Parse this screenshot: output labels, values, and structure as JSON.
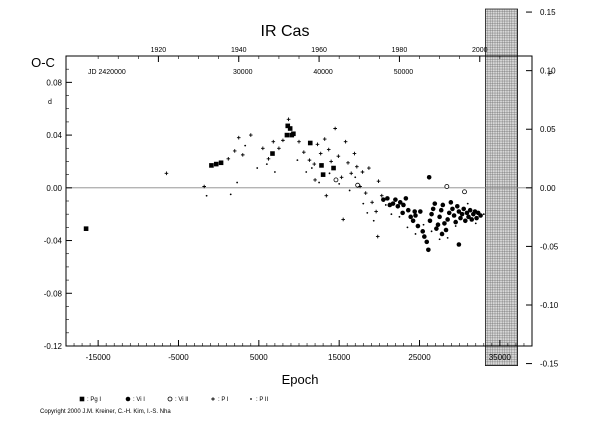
{
  "chart_data": {
    "type": "scatter",
    "title": "IR Cas",
    "ylabel": "O-C",
    "xlabel": "Epoch",
    "xlim": [
      -19000,
      39000
    ],
    "ylim": [
      -0.12,
      0.1
    ],
    "x_ticks": [
      -15000,
      -5000,
      5000,
      15000,
      25000,
      35000
    ],
    "x_tick_labels": [
      "-15000",
      "-5000",
      "5000",
      "15000",
      "25000",
      "35000"
    ],
    "y_ticks": [
      -0.12,
      -0.08,
      -0.04,
      0.0,
      0.04,
      0.08
    ],
    "y_tick_labels": [
      "-0.12",
      "-0.08",
      "-0.04",
      "0.00",
      "0.04",
      "0.08"
    ],
    "y_unit_mark": "d",
    "top_axis": {
      "label": "JD 2420000",
      "year_ticks": [
        1920,
        1940,
        1960,
        1980,
        2000
      ],
      "year_tick_labels": [
        "1920",
        "1940",
        "1960",
        "1980",
        "2000"
      ],
      "year_epochs": [
        -7500,
        2500,
        12500,
        22500,
        32500
      ],
      "jd_ticks": [
        30000,
        40000,
        50000
      ],
      "jd_tick_labels": [
        "30000",
        "40000",
        "50000"
      ],
      "jd_epochs": [
        3000,
        13000,
        23000
      ]
    },
    "right_axis": {
      "phase_ticks": [
        0.15,
        0.1,
        0.05,
        0.0,
        -0.05,
        -0.1,
        -0.15
      ],
      "phase_tick_labels": [
        "0.15",
        "0.10",
        "0.05",
        "0.00",
        "-0.05",
        "-0.10",
        "-0.15"
      ],
      "unit_mark": "P"
    },
    "future_region": {
      "from": 33200,
      "to": 37200
    },
    "series": [
      {
        "name": "Pg I",
        "symbol": "filled-square",
        "points": [
          [
            -16500,
            -0.031
          ],
          [
            -900,
            0.017
          ],
          [
            -300,
            0.018
          ],
          [
            300,
            0.019
          ],
          [
            6700,
            0.026
          ],
          [
            8500,
            0.04
          ],
          [
            8600,
            0.047
          ],
          [
            8900,
            0.045
          ],
          [
            9100,
            0.04
          ],
          [
            9300,
            0.041
          ],
          [
            11400,
            0.034
          ],
          [
            12800,
            0.017
          ],
          [
            13000,
            0.01
          ],
          [
            14300,
            0.015
          ]
        ]
      },
      {
        "name": "Vi I",
        "symbol": "filled-circle",
        "points": [
          [
            20500,
            -0.009
          ],
          [
            21000,
            -0.008
          ],
          [
            21300,
            -0.013
          ],
          [
            21700,
            -0.012
          ],
          [
            22000,
            -0.009
          ],
          [
            22300,
            -0.014
          ],
          [
            22600,
            -0.011
          ],
          [
            23000,
            -0.013
          ],
          [
            23300,
            -0.008
          ],
          [
            23600,
            -0.017
          ],
          [
            23900,
            -0.022
          ],
          [
            24200,
            -0.025
          ],
          [
            24500,
            -0.021
          ],
          [
            24800,
            -0.029
          ],
          [
            25100,
            -0.018
          ],
          [
            25400,
            -0.033
          ],
          [
            25600,
            -0.037
          ],
          [
            25900,
            -0.041
          ],
          [
            26100,
            -0.047
          ],
          [
            26300,
            -0.025
          ],
          [
            26500,
            -0.02
          ],
          [
            26700,
            -0.016
          ],
          [
            26900,
            -0.012
          ],
          [
            27100,
            -0.031
          ],
          [
            27300,
            -0.028
          ],
          [
            27500,
            -0.022
          ],
          [
            27700,
            -0.017
          ],
          [
            27900,
            -0.013
          ],
          [
            28100,
            -0.027
          ],
          [
            28300,
            -0.032
          ],
          [
            28500,
            -0.024
          ],
          [
            28700,
            -0.019
          ],
          [
            28900,
            -0.011
          ],
          [
            29100,
            -0.016
          ],
          [
            29300,
            -0.021
          ],
          [
            29500,
            -0.026
          ],
          [
            29700,
            -0.014
          ],
          [
            29900,
            -0.018
          ],
          [
            30100,
            -0.023
          ],
          [
            30300,
            -0.02
          ],
          [
            30500,
            -0.016
          ],
          [
            30700,
            -0.025
          ],
          [
            30900,
            -0.019
          ],
          [
            31100,
            -0.022
          ],
          [
            31300,
            -0.017
          ],
          [
            31500,
            -0.024
          ],
          [
            31700,
            -0.02
          ],
          [
            31900,
            -0.018
          ],
          [
            32100,
            -0.023
          ],
          [
            32300,
            -0.019
          ],
          [
            32600,
            -0.021
          ],
          [
            26200,
            0.008
          ],
          [
            29900,
            -0.043
          ],
          [
            24400,
            -0.018
          ],
          [
            27800,
            -0.035
          ],
          [
            22900,
            -0.019
          ]
        ]
      },
      {
        "name": "Vi II",
        "symbol": "open-circle",
        "points": [
          [
            17300,
            0.002
          ],
          [
            28400,
            0.001
          ],
          [
            30600,
            -0.003
          ],
          [
            14600,
            0.006
          ]
        ]
      },
      {
        "name": "P I",
        "symbol": "plus",
        "points": [
          [
            -6500,
            0.011
          ],
          [
            -1800,
            0.001
          ],
          [
            1200,
            0.022
          ],
          [
            2000,
            0.028
          ],
          [
            2500,
            0.038
          ],
          [
            3000,
            0.025
          ],
          [
            4000,
            0.04
          ],
          [
            5500,
            0.03
          ],
          [
            6200,
            0.022
          ],
          [
            6800,
            0.035
          ],
          [
            7500,
            0.03
          ],
          [
            8000,
            0.036
          ],
          [
            8700,
            0.052
          ],
          [
            10000,
            0.035
          ],
          [
            10600,
            0.027
          ],
          [
            11300,
            0.021
          ],
          [
            11900,
            0.018
          ],
          [
            12300,
            0.033
          ],
          [
            12700,
            0.026
          ],
          [
            13200,
            0.037
          ],
          [
            13700,
            0.029
          ],
          [
            14000,
            0.02
          ],
          [
            14500,
            0.045
          ],
          [
            14900,
            0.024
          ],
          [
            15300,
            0.008
          ],
          [
            15800,
            0.035
          ],
          [
            16100,
            0.019
          ],
          [
            16500,
            0.011
          ],
          [
            16900,
            0.026
          ],
          [
            17200,
            0.016
          ],
          [
            17600,
            0.001
          ],
          [
            17900,
            0.012
          ],
          [
            18300,
            -0.004
          ],
          [
            18700,
            0.015
          ],
          [
            19100,
            -0.011
          ],
          [
            19600,
            -0.018
          ],
          [
            19900,
            0.005
          ],
          [
            20300,
            -0.006
          ],
          [
            19800,
            -0.037
          ],
          [
            15500,
            -0.024
          ],
          [
            13400,
            -0.006
          ],
          [
            12000,
            0.006
          ]
        ]
      },
      {
        "name": "P II",
        "symbol": "small-dot",
        "points": [
          [
            -1500,
            -0.006
          ],
          [
            1500,
            -0.005
          ],
          [
            2300,
            0.004
          ],
          [
            3300,
            0.032
          ],
          [
            4800,
            0.015
          ],
          [
            6000,
            0.018
          ],
          [
            7000,
            0.012
          ],
          [
            9800,
            0.021
          ],
          [
            10900,
            0.012
          ],
          [
            11600,
            0.015
          ],
          [
            12500,
            0.004
          ],
          [
            13800,
            0.011
          ],
          [
            15000,
            0.003
          ],
          [
            16300,
            -0.002
          ],
          [
            17000,
            0.008
          ],
          [
            18000,
            -0.012
          ],
          [
            18500,
            -0.019
          ],
          [
            19300,
            -0.025
          ],
          [
            20800,
            -0.013
          ],
          [
            21500,
            -0.02
          ],
          [
            22500,
            -0.022
          ],
          [
            23500,
            -0.03
          ],
          [
            24500,
            -0.035
          ],
          [
            25500,
            -0.028
          ],
          [
            26500,
            -0.033
          ],
          [
            27500,
            -0.039
          ],
          [
            28500,
            -0.038
          ],
          [
            29500,
            -0.029
          ],
          [
            31000,
            -0.012
          ],
          [
            32000,
            -0.027
          ],
          [
            33000,
            -0.02
          ]
        ]
      }
    ]
  },
  "legend": [
    {
      "symbol_char": "■",
      "label": ": Pg I"
    },
    {
      "symbol_char": "●",
      "label": ": Vi I"
    },
    {
      "symbol_char": "○",
      "label": ": Vi II"
    },
    {
      "symbol_char": "+",
      "label": ": P I"
    },
    {
      "symbol_char": "·",
      "label": ": P II"
    }
  ],
  "copyright": "Copyright 2000 J.M. Kreiner, C.-H. Kim, I.-S. Nha"
}
